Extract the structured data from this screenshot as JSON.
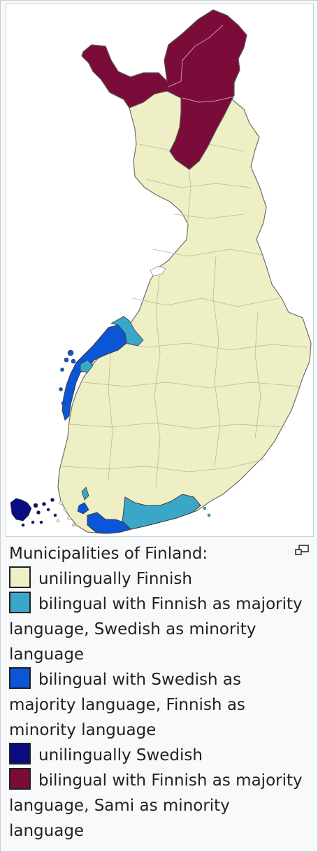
{
  "caption": {
    "title": "Municipalities of Finland:",
    "legend": [
      {
        "label": "unilingually Finnish",
        "color": "#efefc6"
      },
      {
        "label": "bilingual with Finnish as majority language, Swedish as minority language",
        "color": "#3aa7c9"
      },
      {
        "label": "bilingual with Swedish as majority language, Finnish as minority language",
        "color": "#0b56d6"
      },
      {
        "label": "unilingually Swedish",
        "color": "#0b0b82"
      },
      {
        "label": "bilingual with Finnish as majority language, Sami as minority language",
        "color": "#7b0c39"
      }
    ]
  },
  "icons": {
    "magnify": "magnify-icon"
  }
}
